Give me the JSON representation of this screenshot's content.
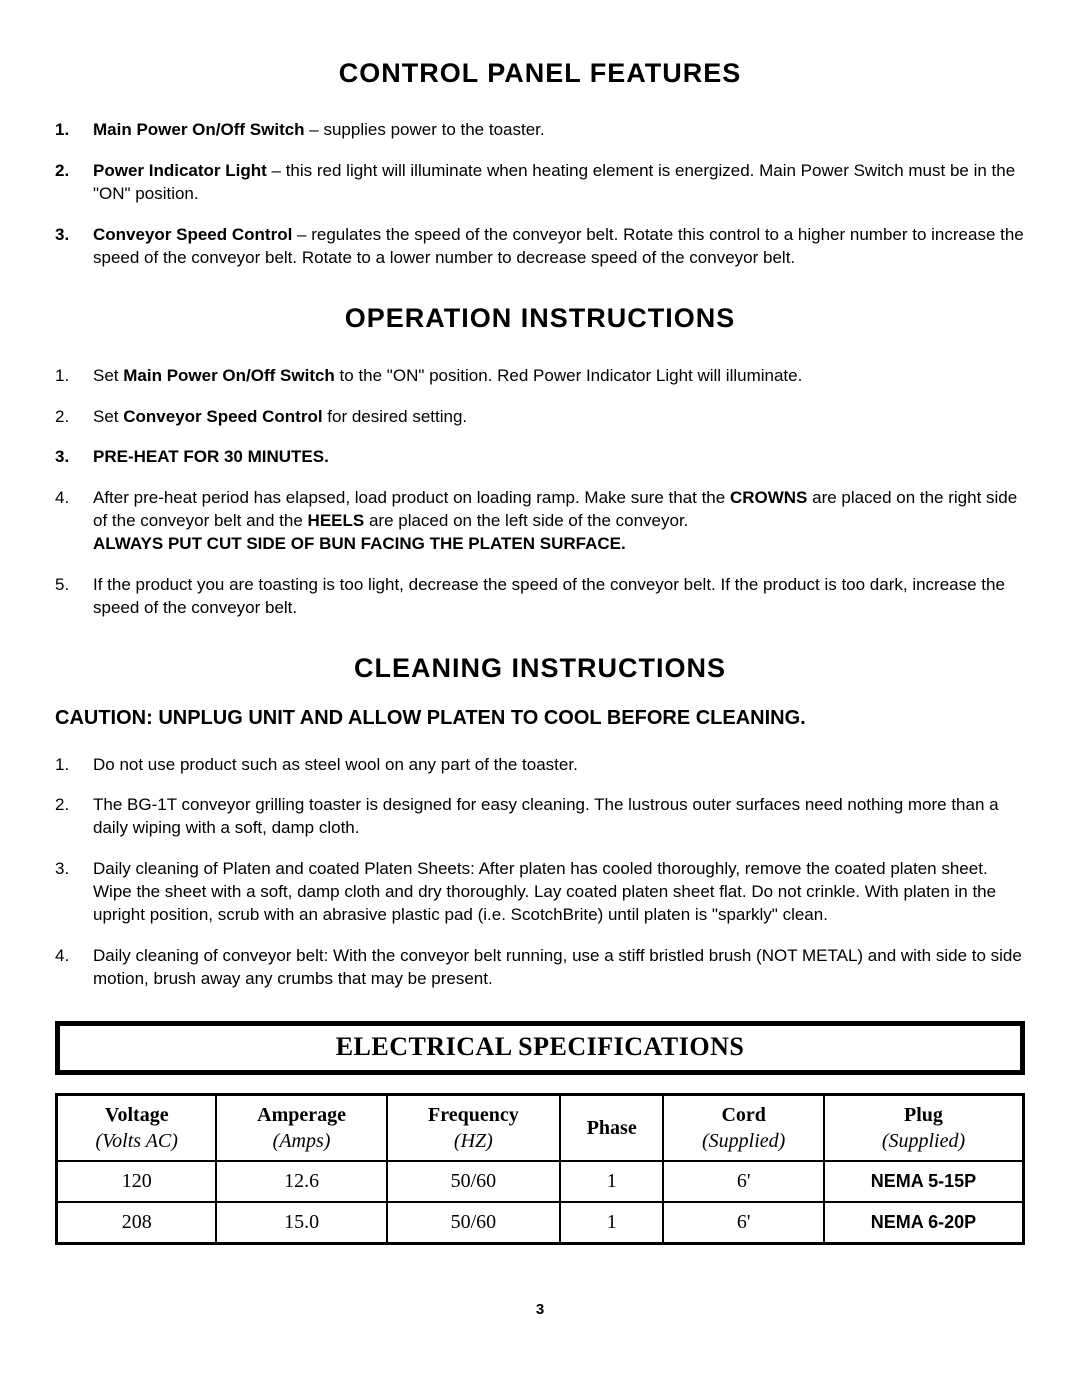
{
  "sections": {
    "control_panel": {
      "heading": "CONTROL PANEL FEATURES",
      "items": [
        {
          "bold": "Main Power On/Off Switch",
          "rest": " – supplies power to the toaster."
        },
        {
          "bold": "Power Indicator Light",
          "rest": " – this red light will illuminate when heating element is energized.  Main Power Switch must be in the \"ON\" position."
        },
        {
          "bold": "Conveyor Speed Control",
          "rest": " – regulates the speed of the conveyor belt.  Rotate this control to a higher number to increase the speed of the conveyor belt.  Rotate to a lower number to decrease speed of the conveyor belt."
        }
      ]
    },
    "operation": {
      "heading": "OPERATION INSTRUCTIONS",
      "items": {
        "i1_pre": "Set ",
        "i1_bold": "Main Power On/Off Switch",
        "i1_post": " to the \"ON\" position.  Red Power Indicator Light will illuminate.",
        "i2_pre": "Set ",
        "i2_bold": "Conveyor Speed Control",
        "i2_post": " for desired setting.",
        "i3_bold": "PRE-HEAT FOR 30 MINUTES.",
        "i4_a": "After pre-heat period has elapsed, load product on loading ramp.  Make sure that the ",
        "i4_b": "CROWNS",
        "i4_c": " are placed on the right side of the conveyor belt and the ",
        "i4_d": "HEELS",
        "i4_e": " are placed on the left side of the conveyor.",
        "i4_f": "ALWAYS PUT CUT SIDE OF BUN FACING THE PLATEN SURFACE.",
        "i5": "If the product you are toasting is too light, decrease the speed of the conveyor belt.  If the product is too dark, increase the speed of the conveyor belt."
      }
    },
    "cleaning": {
      "heading": "CLEANING INSTRUCTIONS",
      "caution": "CAUTION:  UNPLUG UNIT AND ALLOW PLATEN TO COOL BEFORE CLEANING.",
      "items": {
        "i1": "Do not use product such as steel wool on any part of the toaster.",
        "i2": "The BG-1T conveyor grilling toaster is designed for easy cleaning.  The lustrous outer surfaces need nothing more than a daily wiping with a soft, damp cloth.",
        "i3": "Daily cleaning of Platen and coated Platen Sheets:  After platen has cooled thoroughly, remove the coated platen sheet.  Wipe the sheet with a soft, damp cloth and dry thoroughly.  Lay coated platen sheet flat.  Do not crinkle.  With platen in the upright position, scrub with an abrasive plastic pad (i.e. ScotchBrite) until platen is \"sparkly\" clean.",
        "i4": "Daily cleaning of conveyor belt:  With the conveyor belt running, use a stiff bristled brush (NOT METAL) and with side to side motion, brush away any crumbs that may be present."
      }
    }
  },
  "spec_table": {
    "title": "ELECTRICAL SPECIFICATIONS",
    "columns": [
      {
        "label": "Voltage",
        "sub": "(Volts AC)"
      },
      {
        "label": "Amperage",
        "sub": "(Amps)"
      },
      {
        "label": "Frequency",
        "sub": "(HZ)"
      },
      {
        "label": "Phase",
        "sub": ""
      },
      {
        "label": "Cord",
        "sub": "(Supplied)"
      },
      {
        "label": "Plug",
        "sub": "(Supplied)"
      }
    ],
    "rows": [
      [
        "120",
        "12.6",
        "50/60",
        "1",
        "6'",
        "NEMA 5-15P"
      ],
      [
        "208",
        "15.0",
        "50/60",
        "1",
        "6'",
        "NEMA 6-20P"
      ]
    ]
  },
  "page_number": "3"
}
